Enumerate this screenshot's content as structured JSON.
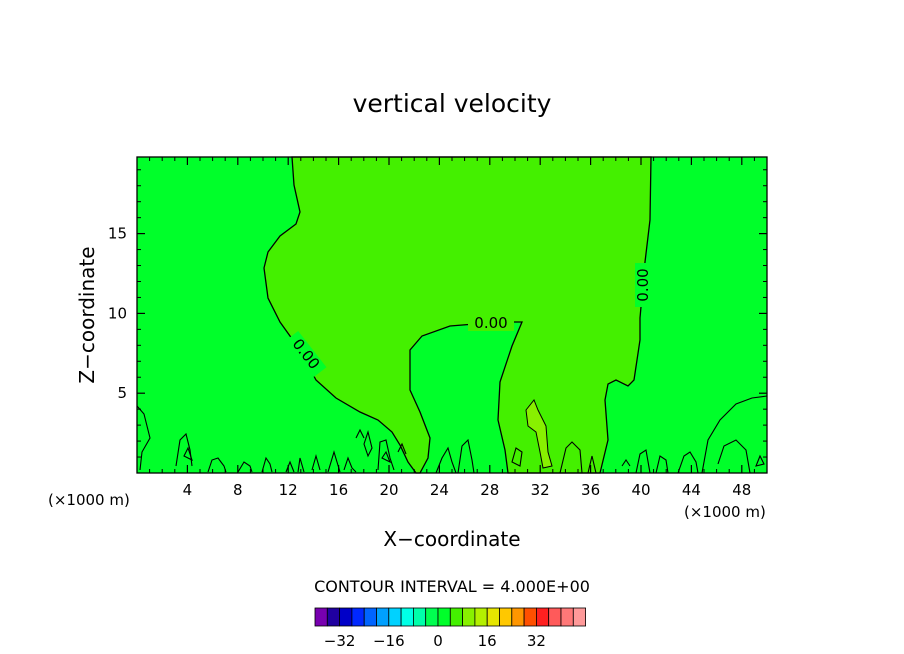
{
  "chart_data": {
    "type": "heatmap",
    "title": "vertical velocity",
    "xlabel": "X−coordinate",
    "ylabel": "Z−coordinate",
    "x_unit_left": "(×1000 m)",
    "x_unit_right": "(×1000 m)",
    "xlim": [
      0,
      50
    ],
    "ylim": [
      0,
      19.8
    ],
    "x_ticks": [
      4,
      8,
      12,
      16,
      20,
      24,
      28,
      32,
      36,
      40,
      44,
      48
    ],
    "x_tick_labels": [
      "4",
      "8",
      "12",
      "16",
      "20",
      "24",
      "28",
      "32",
      "36",
      "40",
      "44",
      "48"
    ],
    "y_ticks": [
      5,
      10,
      15
    ],
    "y_tick_labels": [
      "5",
      "10",
      "15"
    ],
    "background_fill_color": "#00ff2a",
    "updraft_fill_color": "#44f000",
    "contour_labels": [
      "0.00",
      "0.00",
      "0.00",
      "0.00"
    ],
    "contour_interval_text": "CONTOUR INTERVAL = 4.000E+00",
    "colorbar": {
      "tick_labels": [
        "−32",
        "−16",
        "0",
        "16",
        "32"
      ],
      "tick_values": [
        -32,
        -16,
        0,
        16,
        32
      ],
      "colors": [
        "#7800b0",
        "#2000a0",
        "#0000c8",
        "#0028ff",
        "#0064ff",
        "#00a0ff",
        "#00d2ff",
        "#00ffe6",
        "#00ffaa",
        "#00ff50",
        "#00ff2a",
        "#44f000",
        "#88f000",
        "#b4f000",
        "#e6e600",
        "#ffc800",
        "#ff9600",
        "#ff5000",
        "#ff2020",
        "#ff5a5a",
        "#ff7878",
        "#ff9a9a"
      ]
    }
  }
}
